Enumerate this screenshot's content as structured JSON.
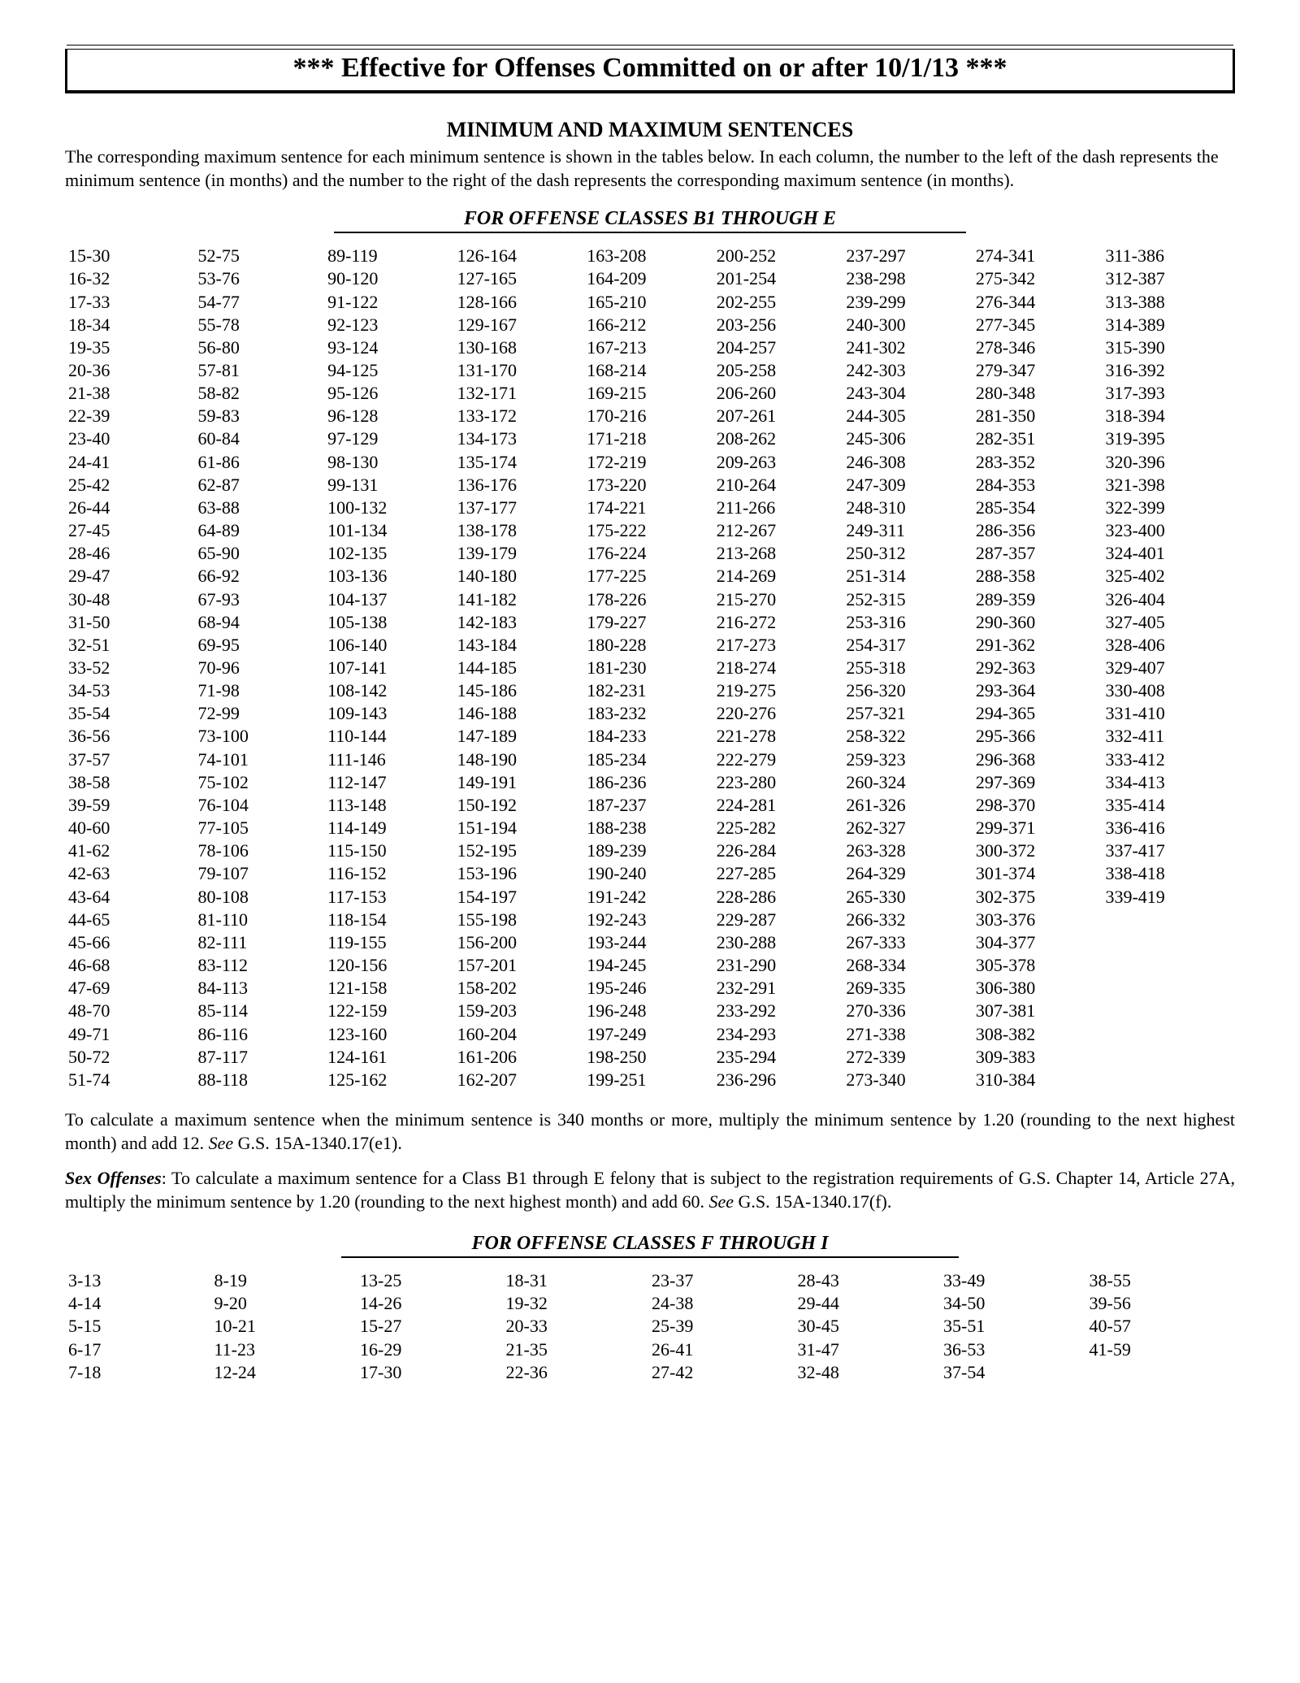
{
  "banner": "*** Effective for Offenses Committed on or after 10/1/13 ***",
  "section_title": "MINIMUM AND MAXIMUM SENTENCES",
  "intro": "The corresponding maximum sentence for each minimum sentence is shown in the tables below.  In each column, the number to the left of the dash represents the minimum sentence (in months) and the number to the right of the dash represents the corresponding maximum sentence (in months).",
  "table1": {
    "heading": "FOR OFFENSE CLASSES B1 THROUGH E",
    "columns": [
      [
        "15-30",
        "16-32",
        "17-33",
        "18-34",
        "19-35",
        "20-36",
        "21-38",
        "22-39",
        "23-40",
        "24-41",
        "25-42",
        "26-44",
        "27-45",
        "28-46",
        "29-47",
        "30-48",
        "31-50",
        "32-51",
        "33-52",
        "34-53",
        "35-54",
        "36-56",
        "37-57",
        "38-58",
        "39-59",
        "40-60",
        "41-62",
        "42-63",
        "43-64",
        "44-65",
        "45-66",
        "46-68",
        "47-69",
        "48-70",
        "49-71",
        "50-72",
        "51-74"
      ],
      [
        "52-75",
        "53-76",
        "54-77",
        "55-78",
        "56-80",
        "57-81",
        "58-82",
        "59-83",
        "60-84",
        "61-86",
        "62-87",
        "63-88",
        "64-89",
        "65-90",
        "66-92",
        "67-93",
        "68-94",
        "69-95",
        "70-96",
        "71-98",
        "72-99",
        "73-100",
        "74-101",
        "75-102",
        "76-104",
        "77-105",
        "78-106",
        "79-107",
        "80-108",
        "81-110",
        "82-111",
        "83-112",
        "84-113",
        "85-114",
        "86-116",
        "87-117",
        "88-118"
      ],
      [
        "89-119",
        "90-120",
        "91-122",
        "92-123",
        "93-124",
        "94-125",
        "95-126",
        "96-128",
        "97-129",
        "98-130",
        "99-131",
        "100-132",
        "101-134",
        "102-135",
        "103-136",
        "104-137",
        "105-138",
        "106-140",
        "107-141",
        "108-142",
        "109-143",
        "110-144",
        "111-146",
        "112-147",
        "113-148",
        "114-149",
        "115-150",
        "116-152",
        "117-153",
        "118-154",
        "119-155",
        "120-156",
        "121-158",
        "122-159",
        "123-160",
        "124-161",
        "125-162"
      ],
      [
        "126-164",
        "127-165",
        "128-166",
        "129-167",
        "130-168",
        "131-170",
        "132-171",
        "133-172",
        "134-173",
        "135-174",
        "136-176",
        "137-177",
        "138-178",
        "139-179",
        "140-180",
        "141-182",
        "142-183",
        "143-184",
        "144-185",
        "145-186",
        "146-188",
        "147-189",
        "148-190",
        "149-191",
        "150-192",
        "151-194",
        "152-195",
        "153-196",
        "154-197",
        "155-198",
        "156-200",
        "157-201",
        "158-202",
        "159-203",
        "160-204",
        "161-206",
        "162-207"
      ],
      [
        "163-208",
        "164-209",
        "165-210",
        "166-212",
        "167-213",
        "168-214",
        "169-215",
        "170-216",
        "171-218",
        "172-219",
        "173-220",
        "174-221",
        "175-222",
        "176-224",
        "177-225",
        "178-226",
        "179-227",
        "180-228",
        "181-230",
        "182-231",
        "183-232",
        "184-233",
        "185-234",
        "186-236",
        "187-237",
        "188-238",
        "189-239",
        "190-240",
        "191-242",
        "192-243",
        "193-244",
        "194-245",
        "195-246",
        "196-248",
        "197-249",
        "198-250",
        "199-251"
      ],
      [
        "200-252",
        "201-254",
        "202-255",
        "203-256",
        "204-257",
        "205-258",
        "206-260",
        "207-261",
        "208-262",
        "209-263",
        "210-264",
        "211-266",
        "212-267",
        "213-268",
        "214-269",
        "215-270",
        "216-272",
        "217-273",
        "218-274",
        "219-275",
        "220-276",
        "221-278",
        "222-279",
        "223-280",
        "224-281",
        "225-282",
        "226-284",
        "227-285",
        "228-286",
        "229-287",
        "230-288",
        "231-290",
        "232-291",
        "233-292",
        "234-293",
        "235-294",
        "236-296"
      ],
      [
        "237-297",
        "238-298",
        "239-299",
        "240-300",
        "241-302",
        "242-303",
        "243-304",
        "244-305",
        "245-306",
        "246-308",
        "247-309",
        "248-310",
        "249-311",
        "250-312",
        "251-314",
        "252-315",
        "253-316",
        "254-317",
        "255-318",
        "256-320",
        "257-321",
        "258-322",
        "259-323",
        "260-324",
        "261-326",
        "262-327",
        "263-328",
        "264-329",
        "265-330",
        "266-332",
        "267-333",
        "268-334",
        "269-335",
        "270-336",
        "271-338",
        "272-339",
        "273-340"
      ],
      [
        "274-341",
        "275-342",
        "276-344",
        "277-345",
        "278-346",
        "279-347",
        "280-348",
        "281-350",
        "282-351",
        "283-352",
        "284-353",
        "285-354",
        "286-356",
        "287-357",
        "288-358",
        "289-359",
        "290-360",
        "291-362",
        "292-363",
        "293-364",
        "294-365",
        "295-366",
        "296-368",
        "297-369",
        "298-370",
        "299-371",
        "300-372",
        "301-374",
        "302-375",
        "303-376",
        "304-377",
        "305-378",
        "306-380",
        "307-381",
        "308-382",
        "309-383",
        "310-384"
      ],
      [
        "311-386",
        "312-387",
        "313-388",
        "314-389",
        "315-390",
        "316-392",
        "317-393",
        "318-394",
        "319-395",
        "320-396",
        "321-398",
        "322-399",
        "323-400",
        "324-401",
        "325-402",
        "326-404",
        "327-405",
        "328-406",
        "329-407",
        "330-408",
        "331-410",
        "332-411",
        "333-412",
        "334-413",
        "335-414",
        "336-416",
        "337-417",
        "338-418",
        "339-419"
      ]
    ]
  },
  "para1": {
    "text1": "To calculate a maximum sentence when the minimum sentence is 340 months or more, multiply the minimum sentence by 1.20 (rounding to the next highest month) and add 12.  ",
    "see": "See",
    "text2": " G.S. 15A-1340.17(e1)."
  },
  "para2": {
    "label": "Sex Offenses",
    "text1": ": To calculate a maximum sentence for a Class B1 through E felony that is subject to the registration requirements of G.S. Chapter 14, Article 27A, multiply the minimum sentence by 1.20 (rounding to the next highest month) and add 60.  ",
    "see": "See",
    "text2": " G.S. 15A-1340.17(f)."
  },
  "table2": {
    "heading": "FOR OFFENSE CLASSES F THROUGH I",
    "columns": [
      [
        "3-13",
        "4-14",
        "5-15",
        "6-17",
        "7-18"
      ],
      [
        "8-19",
        "9-20",
        "10-21",
        "11-23",
        "12-24"
      ],
      [
        "13-25",
        "14-26",
        "15-27",
        "16-29",
        "17-30"
      ],
      [
        "18-31",
        "19-32",
        "20-33",
        "21-35",
        "22-36"
      ],
      [
        "23-37",
        "24-38",
        "25-39",
        "26-41",
        "27-42"
      ],
      [
        "28-43",
        "29-44",
        "30-45",
        "31-47",
        "32-48"
      ],
      [
        "33-49",
        "34-50",
        "35-51",
        "36-53",
        "37-54"
      ],
      [
        "38-55",
        "39-56",
        "40-57",
        "41-59"
      ]
    ]
  }
}
